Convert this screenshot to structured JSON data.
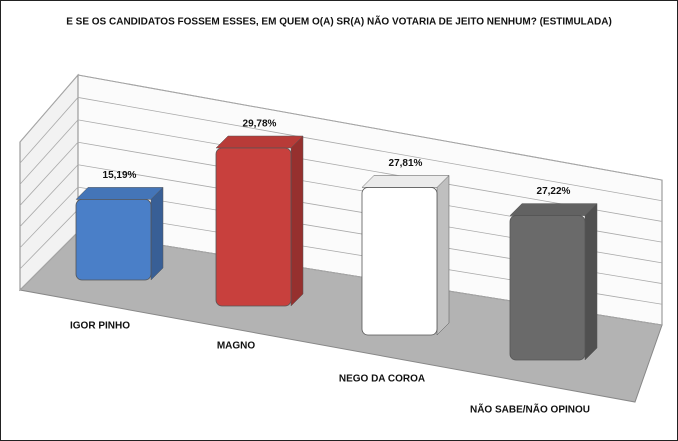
{
  "chart_data": {
    "type": "bar3d",
    "title": "E SE OS CANDIDATOS FOSSEM ESSES, EM QUEM O(A) SR(A) NÃO VOTARIA DE JEITO NENHUM? (ESTIMULADA)",
    "categories": [
      "IGOR PINHO",
      "MAGNO",
      "NEGO DA COROA",
      "NÃO SABE/NÃO OPINOU"
    ],
    "values": [
      15.19,
      29.78,
      27.81,
      27.22
    ],
    "value_labels": [
      "15,19%",
      "29,78%",
      "27,81%",
      "27,22%"
    ],
    "colors": [
      "#4a7fc8",
      "#c8403d",
      "#ffffff",
      "#6a6a6a"
    ]
  }
}
